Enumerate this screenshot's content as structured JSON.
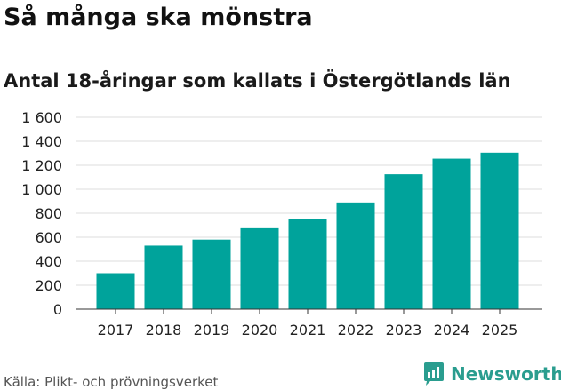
{
  "chart_data": {
    "type": "bar",
    "title": "Så många ska mönstra",
    "subtitle": "Antal 18-åringar som kallats i Östergötlands län",
    "categories": [
      "2017",
      "2018",
      "2019",
      "2020",
      "2021",
      "2022",
      "2023",
      "2024",
      "2025"
    ],
    "values": [
      300,
      530,
      580,
      675,
      750,
      890,
      1125,
      1255,
      1305
    ],
    "yticks": [
      "0",
      "200",
      "400",
      "600",
      "800",
      "1 000",
      "1 200",
      "1 400",
      "1 600"
    ],
    "ylim": [
      0,
      1600
    ],
    "xlabel": "",
    "ylabel": "",
    "grid": true,
    "bar_color": "#00a39b",
    "source": "Källa: Plikt- och prövningsverket"
  },
  "branding": {
    "name": "Newsworthy",
    "color": "#2a9d8f",
    "icon": "newsworthy-logo-icon"
  }
}
